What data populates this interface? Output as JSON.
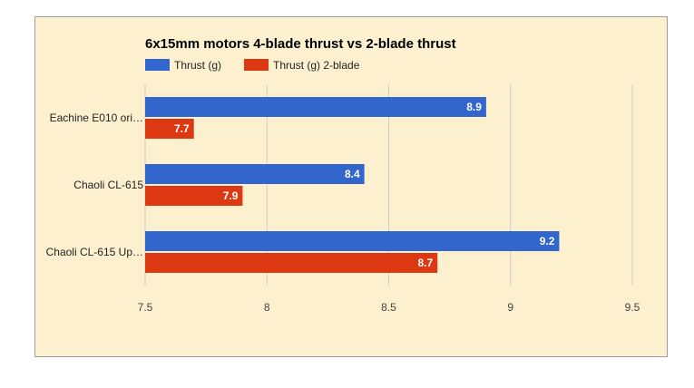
{
  "chart_data": {
    "type": "bar",
    "orientation": "horizontal",
    "title": "6x15mm motors 4-blade thrust vs 2-blade thrust",
    "categories": [
      "Eachine E010 ori…",
      "Chaoli CL-615",
      "Chaoli CL-615 Up…"
    ],
    "series": [
      {
        "name": "Thrust (g)",
        "color": "#3366cc",
        "values": [
          8.9,
          8.4,
          9.2
        ],
        "labels": [
          "8.9",
          "8.4",
          "9.2"
        ]
      },
      {
        "name": "Thrust (g) 2-blade",
        "color": "#dc3912",
        "values": [
          7.7,
          7.9,
          8.7
        ],
        "labels": [
          "7.7",
          "7.9",
          "8.7"
        ]
      }
    ],
    "xlim": [
      7.5,
      9.5
    ],
    "xticks": [
      7.5,
      8,
      8.5,
      9,
      9.5
    ],
    "xtick_labels": [
      "7.5",
      "8",
      "8.5",
      "9",
      "9.5"
    ],
    "grid": true,
    "legend_position": "top-left",
    "background": "#fdf0cf"
  }
}
